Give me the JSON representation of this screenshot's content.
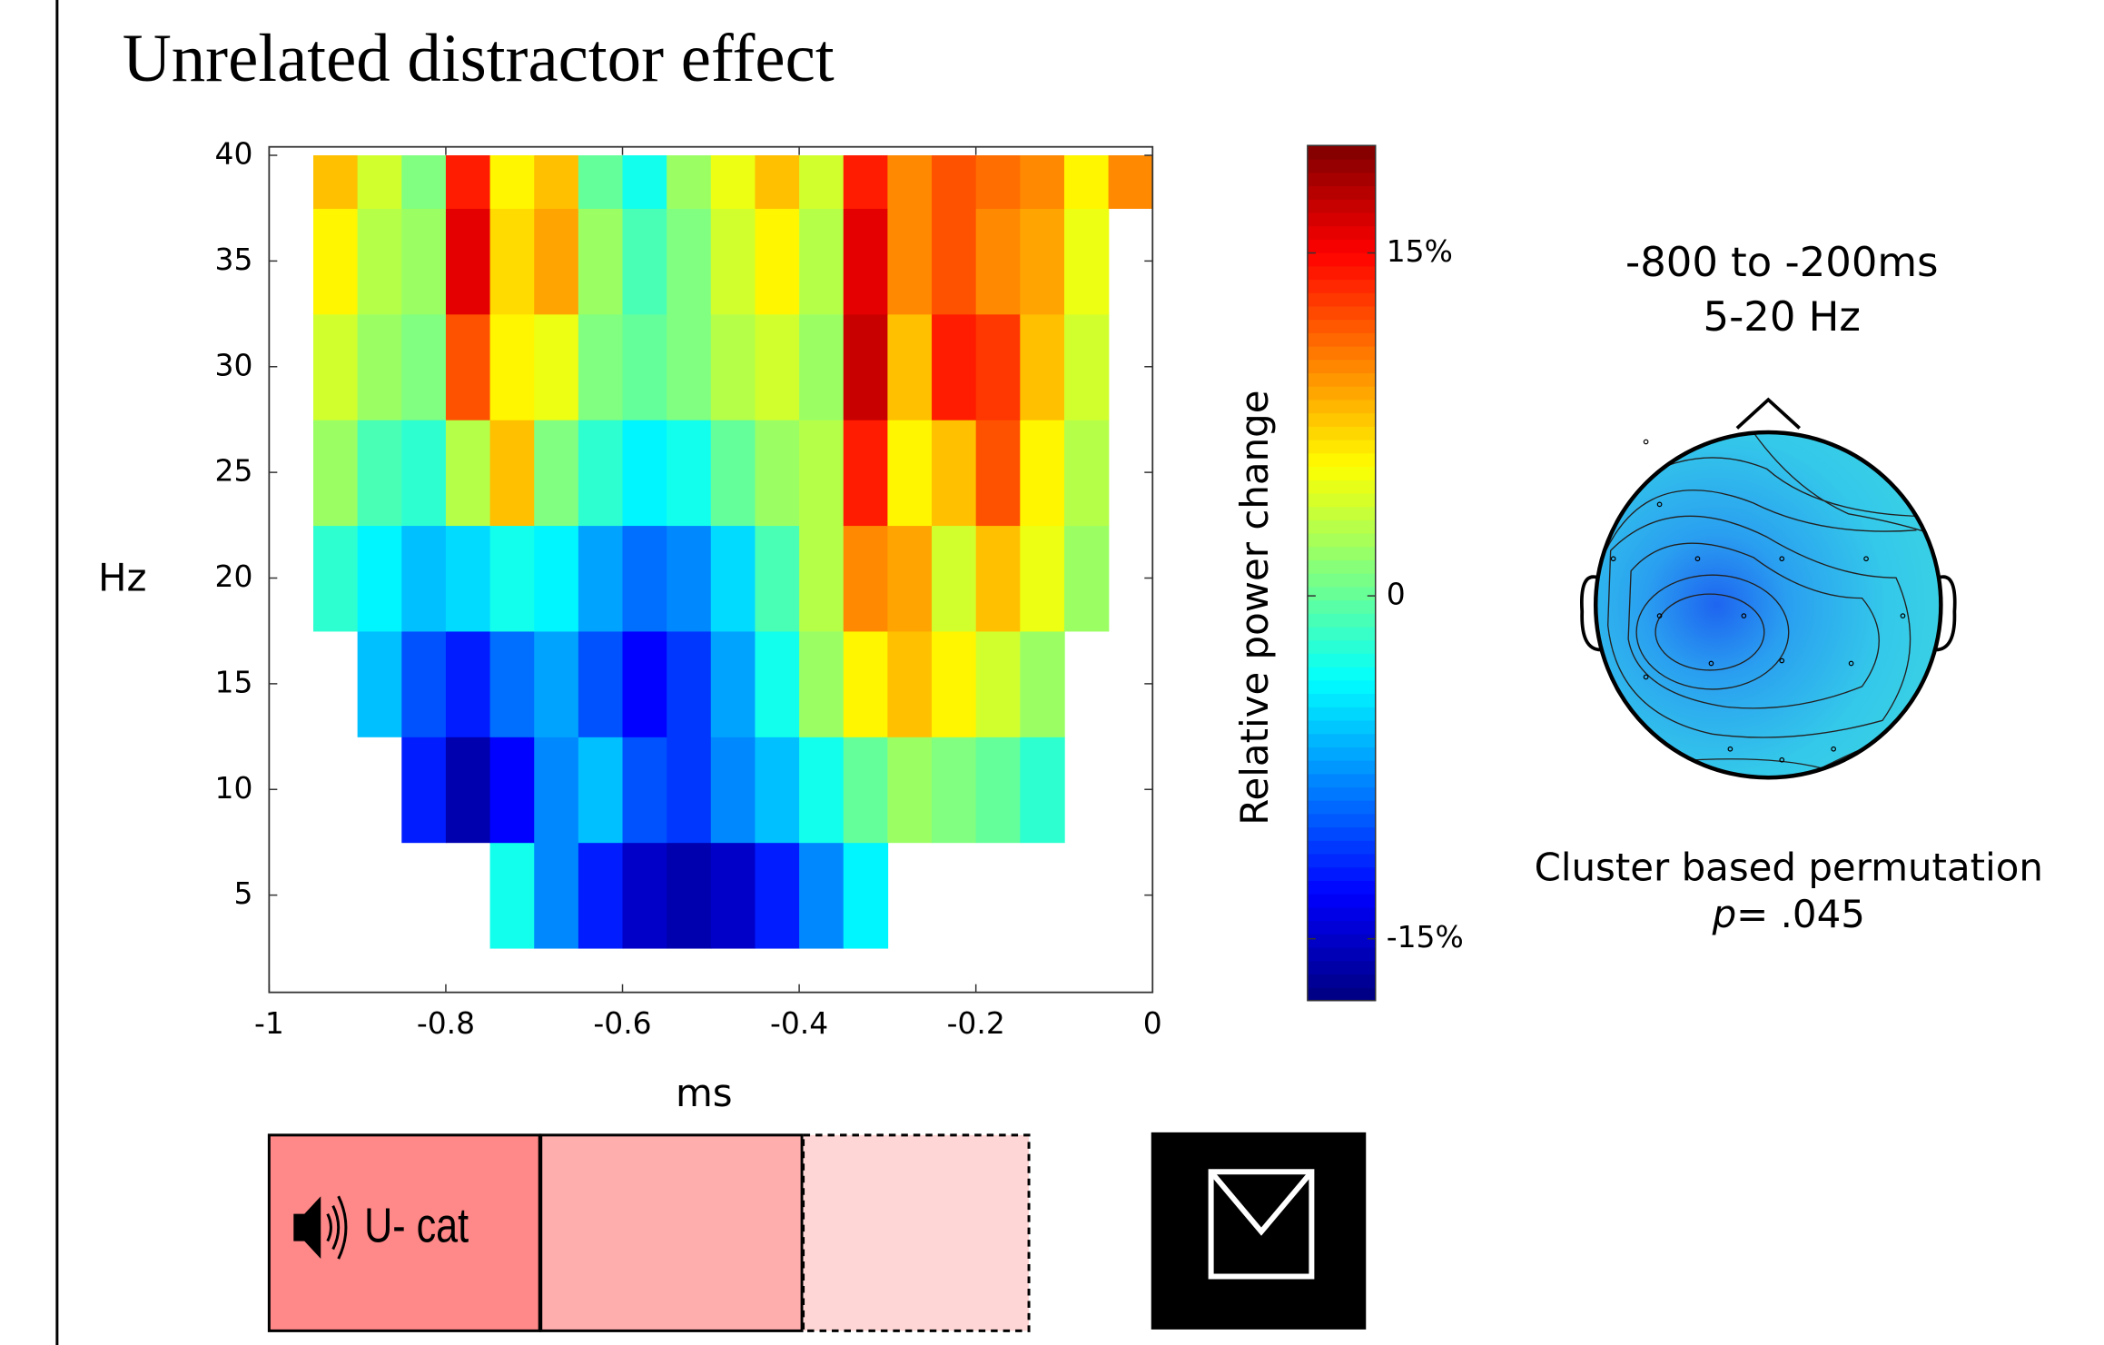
{
  "chart_data": {
    "type": "heatmap",
    "title": "Unrelated distractor effect",
    "x_label": "ms",
    "y_label": "Hz",
    "x_bins": [
      -1,
      -0.95,
      -0.9,
      -0.85,
      -0.8,
      -0.75,
      -0.7,
      -0.65,
      -0.6,
      -0.55,
      -0.5,
      -0.45,
      -0.4,
      -0.35,
      -0.3,
      -0.25,
      -0.2,
      -0.15,
      -0.1,
      -0.05,
      0
    ],
    "y_bins": [
      2.5,
      7.5,
      12.5,
      17.5,
      22.5,
      27.5,
      32.5,
      37.5,
      40
    ],
    "values": [
      [
        null,
        null,
        null,
        null,
        null,
        -3,
        -8,
        -12,
        -15,
        -16,
        -15,
        -12,
        -8,
        -4,
        null,
        null,
        null,
        null,
        null,
        null
      ],
      [
        null,
        null,
        null,
        -12,
        -16,
        -13,
        -8,
        -6,
        -10,
        -11,
        -8,
        -6,
        -3,
        0,
        2,
        1,
        0,
        -2,
        null,
        null
      ],
      [
        null,
        null,
        -6,
        -10,
        -12,
        -9,
        -7,
        -10,
        -13,
        -11,
        -7,
        -3,
        2,
        6,
        8,
        6,
        4,
        2,
        null,
        null
      ],
      [
        null,
        -2,
        -4,
        -6,
        -5,
        -3,
        -4,
        -7,
        -9,
        -8,
        -5,
        -1,
        3,
        10,
        9,
        4,
        8,
        5,
        2,
        null
      ],
      [
        null,
        2,
        -1,
        -2,
        3,
        8,
        1,
        -2,
        -4,
        -3,
        0,
        2,
        3,
        14,
        6,
        8,
        12,
        6,
        3,
        null
      ],
      [
        null,
        4,
        2,
        1,
        12,
        6,
        5,
        1,
        0,
        1,
        3,
        4,
        2,
        17,
        8,
        14,
        13,
        8,
        4,
        null
      ],
      [
        null,
        6,
        3,
        2,
        16,
        7,
        9,
        2,
        -1,
        1,
        4,
        6,
        3,
        16,
        10,
        12,
        10,
        9,
        5,
        null
      ],
      [
        null,
        8,
        4,
        1,
        14,
        6,
        8,
        0,
        -3,
        2,
        5,
        8,
        4,
        14,
        10,
        12,
        11,
        10,
        6,
        10
      ]
    ],
    "xlim": [
      -1,
      0
    ],
    "xticks": [
      -1,
      -0.8,
      -0.6,
      -0.4,
      -0.2,
      0
    ],
    "ylim": [
      0.4,
      40.4
    ],
    "yticks": [
      5,
      10,
      15,
      20,
      25,
      30,
      35,
      40
    ],
    "colormap": "jet",
    "colorbar": {
      "label": "Relative power change",
      "clim": [
        -17.7,
        19.7
      ],
      "ticks": [
        {
          "value": 15,
          "label": "15%"
        },
        0,
        {
          "value": -15,
          "label": "-15%"
        }
      ]
    }
  },
  "topoplot": {
    "title_lines": [
      "-800 to -200ms",
      "5-20 Hz"
    ],
    "caption": "Cluster based permutation",
    "p_label": "p=",
    "p_value": " .045"
  },
  "trial": {
    "cue_label": "U- cat"
  }
}
